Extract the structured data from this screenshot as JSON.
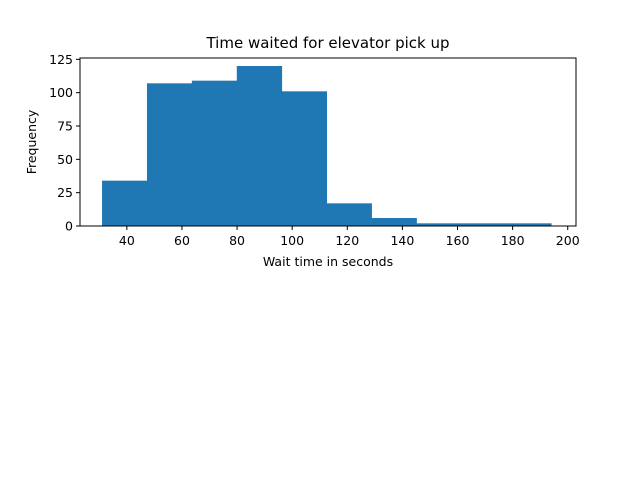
{
  "chart_data": {
    "type": "bar",
    "title": "Time waited for elevator pick up",
    "xlabel": "Wait time in seconds",
    "ylabel": "Frequency",
    "bin_edges": [
      31,
      47.3,
      63.6,
      79.9,
      96.2,
      112.5,
      128.8,
      145.1,
      161.4,
      177.7,
      194
    ],
    "values": [
      34,
      107,
      109,
      120,
      101,
      17,
      6,
      2,
      2,
      2
    ],
    "xlim": [
      23,
      203
    ],
    "ylim": [
      0,
      126
    ],
    "xticks": [
      40,
      60,
      80,
      100,
      120,
      140,
      160,
      180,
      200
    ],
    "yticks": [
      0,
      25,
      50,
      75,
      100,
      125
    ],
    "grid": false,
    "bar_color": "#1f77b4"
  }
}
